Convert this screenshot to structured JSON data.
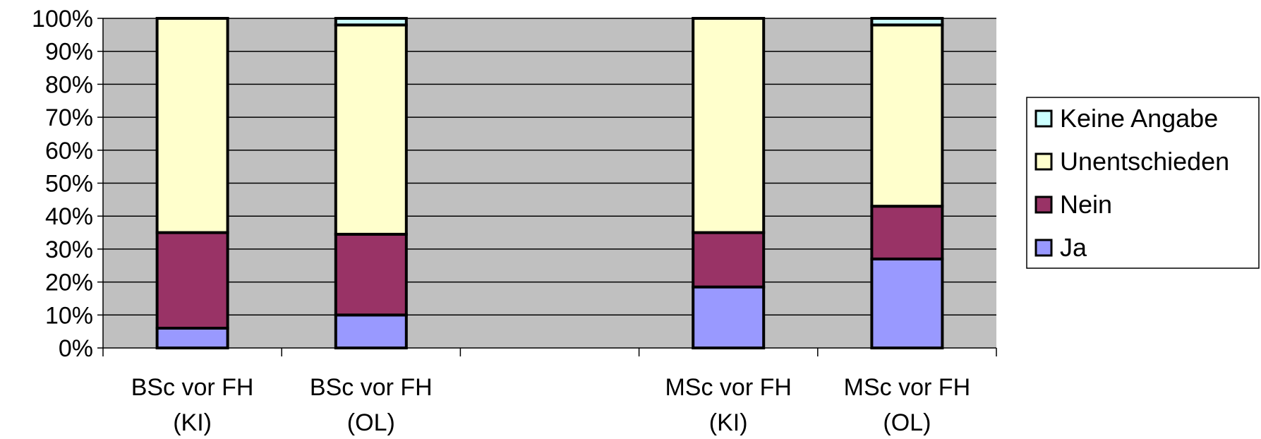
{
  "chart_data": {
    "type": "bar",
    "stacked": true,
    "normalized_percent": true,
    "categories": [
      {
        "line1": "BSc vor FH",
        "line2": "(KI)"
      },
      {
        "line1": "BSc vor FH",
        "line2": "(OL)"
      },
      {
        "line1": "",
        "line2": ""
      },
      {
        "line1": "MSc vor FH",
        "line2": "(KI)"
      },
      {
        "line1": "MSc vor FH",
        "line2": "(OL)"
      }
    ],
    "series": [
      {
        "name": "Ja",
        "color": "#9999ff",
        "values": [
          6,
          10,
          null,
          18.5,
          27
        ]
      },
      {
        "name": "Nein",
        "color": "#993366",
        "values": [
          29,
          24.5,
          null,
          16.5,
          16
        ]
      },
      {
        "name": "Unentschieden",
        "color": "#ffffcc",
        "values": [
          65,
          63.5,
          null,
          65,
          55
        ]
      },
      {
        "name": "Keine Angabe",
        "color": "#ccffff",
        "values": [
          0,
          2,
          null,
          0,
          2
        ]
      }
    ],
    "y_ticks": [
      "0%",
      "10%",
      "20%",
      "30%",
      "40%",
      "50%",
      "60%",
      "70%",
      "80%",
      "90%",
      "100%"
    ],
    "ylim": [
      0,
      100
    ],
    "grid": true,
    "plot_background": "#c0c0c0",
    "legend_position": "right",
    "legend_order": [
      "Keine Angabe",
      "Unentschieden",
      "Nein",
      "Ja"
    ]
  }
}
